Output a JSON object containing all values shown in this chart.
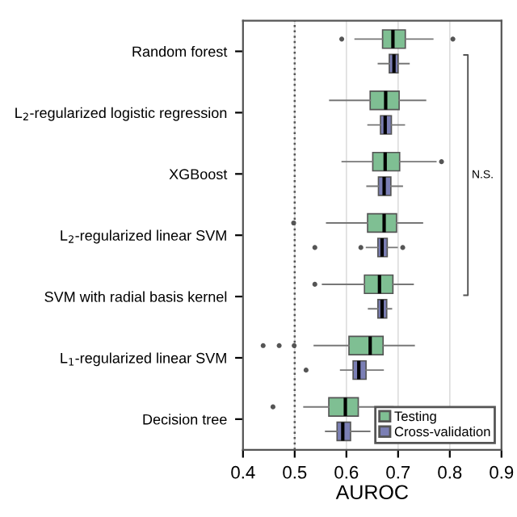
{
  "chart_data": {
    "type": "box",
    "xlabel": "AUROC",
    "categories": [
      "Random forest",
      "L$_{2}$-regularized logistic regression",
      "XGBoost",
      "L$_{2}$-regularized linear SVM",
      "SVM with radial basis kernel",
      "L$_{1}$-regularized linear SVM",
      "Decision tree"
    ],
    "orientation": "horizontal",
    "series": [
      {
        "name": "Testing",
        "color": "#7fbf93",
        "boxes": [
          {
            "low": 0.617,
            "q1": 0.67,
            "median": 0.69,
            "q3": 0.714,
            "high": 0.767,
            "outliers": [
              0.591,
              0.806
            ]
          },
          {
            "low": 0.568,
            "q1": 0.646,
            "median": 0.676,
            "q3": 0.702,
            "high": 0.753
          },
          {
            "low": 0.592,
            "q1": 0.651,
            "median": 0.675,
            "q3": 0.703,
            "high": 0.773,
            "outliers": [
              0.784
            ]
          },
          {
            "low": 0.562,
            "q1": 0.641,
            "median": 0.673,
            "q3": 0.697,
            "high": 0.747,
            "outliers": [
              0.498
            ]
          },
          {
            "low": 0.554,
            "q1": 0.635,
            "median": 0.664,
            "q3": 0.69,
            "high": 0.729,
            "outliers": [
              0.539
            ]
          },
          {
            "low": 0.538,
            "q1": 0.605,
            "median": 0.646,
            "q3": 0.671,
            "high": 0.731,
            "outliers": [
              0.439,
              0.47,
              0.499
            ]
          },
          {
            "low": 0.518,
            "q1": 0.566,
            "median": 0.598,
            "q3": 0.623,
            "high": 0.69,
            "outliers": [
              0.458
            ]
          }
        ]
      },
      {
        "name": "Cross-validation",
        "color": "#7b7fb5",
        "boxes": [
          {
            "low": 0.662,
            "q1": 0.683,
            "median": 0.692,
            "q3": 0.7,
            "high": 0.721
          },
          {
            "low": 0.642,
            "q1": 0.666,
            "median": 0.675,
            "q3": 0.687,
            "high": 0.712
          },
          {
            "low": 0.64,
            "q1": 0.662,
            "median": 0.673,
            "q3": 0.686,
            "high": 0.708
          },
          {
            "low": 0.639,
            "q1": 0.661,
            "median": 0.669,
            "q3": 0.679,
            "high": 0.698,
            "outliers": [
              0.539,
              0.628,
              0.709
            ]
          },
          {
            "low": 0.643,
            "q1": 0.661,
            "median": 0.669,
            "q3": 0.678,
            "high": 0.687
          },
          {
            "low": 0.589,
            "q1": 0.613,
            "median": 0.624,
            "q3": 0.638,
            "high": 0.671,
            "outliers": [
              0.522
            ]
          },
          {
            "low": 0.56,
            "q1": 0.582,
            "median": 0.593,
            "q3": 0.608,
            "high": 0.645
          }
        ]
      }
    ],
    "xlim": [
      0.4,
      0.9
    ],
    "xticks": [
      0.4,
      0.5,
      0.6,
      0.7,
      0.8,
      0.9
    ],
    "ref_lines": [
      {
        "axis": "x",
        "value": 0.5,
        "line_style": "dotted",
        "color": "#555555"
      }
    ],
    "annotations": [
      "N.S."
    ],
    "grid": "x",
    "legend": "bottom right"
  }
}
